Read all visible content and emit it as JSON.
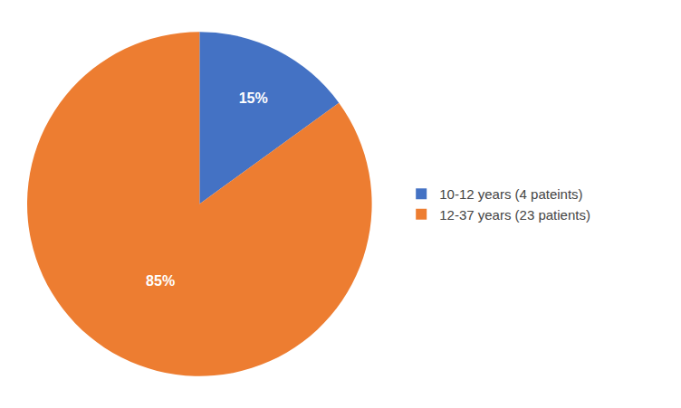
{
  "chart_data": {
    "type": "pie",
    "categories": [
      "10-12 years (4 pateints)",
      "12-37 years (23 patients)"
    ],
    "values": [
      15,
      85
    ],
    "value_labels": [
      "15%",
      "85%"
    ],
    "colors": [
      "#4472C4",
      "#ED7D31"
    ],
    "data_labels": true,
    "legend": "right"
  }
}
